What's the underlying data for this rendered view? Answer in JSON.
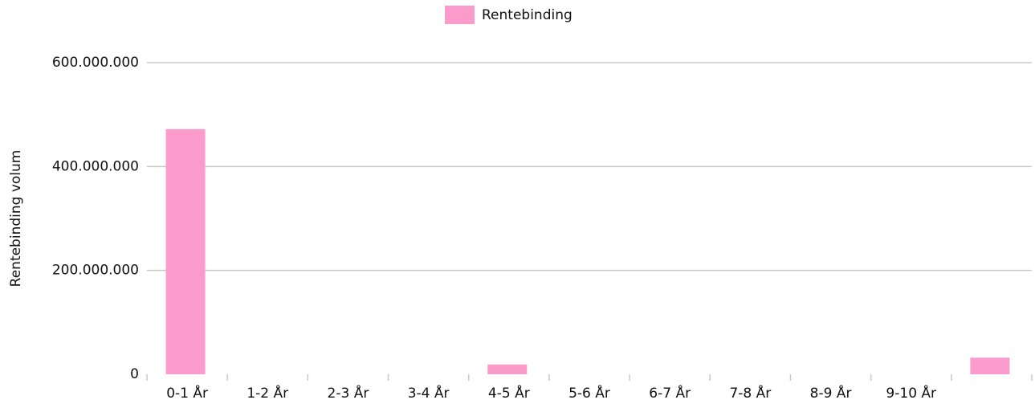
{
  "chart_data": {
    "type": "bar",
    "y_label": "Rentebinding volum",
    "categories": [
      "0-1 År",
      "1-2 År",
      "2-3 År",
      "3-4 År",
      "4-5 År",
      "5-6 År",
      "6-7 År",
      "7-8 År",
      "8-9 År",
      "9-10 År",
      null
    ],
    "series": [
      {
        "name": "Rentebinding",
        "color": "#fa9bcc",
        "values": [
          472000000,
          0,
          0,
          0,
          19000000,
          0,
          0,
          0,
          0,
          0,
          32000000
        ]
      }
    ],
    "ylim": [
      0,
      600000000
    ],
    "yticks": [
      0,
      {
        "value": 200000000,
        "label": "200.000.000"
      },
      {
        "value": 400000000,
        "label": "400.000.000"
      },
      {
        "value": 600000000,
        "label": "600.000.000"
      }
    ],
    "grid": true,
    "legend": "top"
  }
}
